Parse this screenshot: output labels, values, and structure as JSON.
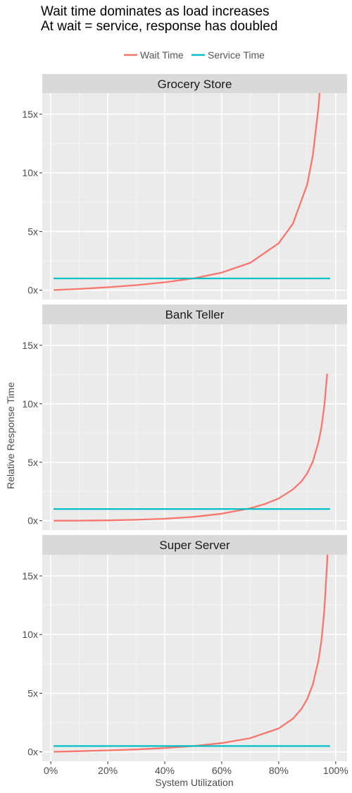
{
  "chart_data": {
    "type": "line",
    "title_lines": [
      "Wait time dominates as load increases",
      "At wait = service, response has doubled"
    ],
    "xlabel": "System Utilization",
    "ylabel": "Relative Response Time",
    "x_ticks": [
      0,
      20,
      40,
      60,
      80,
      100
    ],
    "x_tick_labels": [
      "0%",
      "20%",
      "40%",
      "60%",
      "80%",
      "100%"
    ],
    "y_ticks": [
      0,
      5,
      10,
      15
    ],
    "y_tick_labels": [
      "0x",
      "5x",
      "10x",
      "15x"
    ],
    "xlim": [
      -3,
      104
    ],
    "ylim": [
      -0.8,
      16.8
    ],
    "legend": {
      "position": "top",
      "items": [
        {
          "label": "Wait Time",
          "color": "#F8766D"
        },
        {
          "label": "Service Time",
          "color": "#00BFC4"
        }
      ]
    },
    "panels": [
      {
        "name": "Grocery Store",
        "x": [
          1,
          10,
          20,
          30,
          40,
          50,
          60,
          70,
          80,
          85,
          90,
          92,
          94,
          95,
          96
        ],
        "series": [
          {
            "name": "Wait Time",
            "color": "#F8766D",
            "values": [
              0.01,
              0.11,
              0.25,
              0.43,
              0.67,
              1.0,
              1.5,
              2.33,
              4.0,
              5.67,
              9.0,
              11.5,
              15.67,
              19.0,
              24.0
            ]
          },
          {
            "name": "Service Time",
            "color": "#00BFC4",
            "x_range": [
              1,
              98
            ],
            "value": 1.0
          }
        ]
      },
      {
        "name": "Bank Teller",
        "x": [
          1,
          10,
          20,
          30,
          40,
          50,
          60,
          70,
          75,
          80,
          85,
          88,
          90,
          92,
          94,
          95,
          96,
          97
        ],
        "series": [
          {
            "name": "Wait Time",
            "color": "#F8766D",
            "values": [
              0.0,
              0.01,
              0.03,
              0.08,
              0.17,
              0.33,
              0.6,
              1.06,
              1.42,
              1.9,
              2.68,
              3.37,
              4.05,
              5.06,
              6.75,
              8.0,
              9.79,
              12.56
            ]
          },
          {
            "name": "Service Time",
            "color": "#00BFC4",
            "x_range": [
              1,
              98
            ],
            "value": 1.0
          }
        ]
      },
      {
        "name": "Super Server",
        "x": [
          1,
          10,
          20,
          30,
          40,
          50,
          60,
          70,
          80,
          85,
          88,
          90,
          92,
          94,
          95,
          96,
          97,
          97.5
        ],
        "series": [
          {
            "name": "Wait Time",
            "color": "#F8766D",
            "values": [
              0.01,
              0.06,
              0.13,
              0.21,
              0.33,
              0.5,
              0.75,
              1.17,
              2.0,
              2.83,
              3.67,
              4.5,
              5.75,
              7.83,
              9.5,
              12.0,
              16.17,
              19.5
            ]
          },
          {
            "name": "Service Time",
            "color": "#00BFC4",
            "x_range": [
              1,
              98
            ],
            "value": 0.5
          }
        ]
      }
    ]
  }
}
